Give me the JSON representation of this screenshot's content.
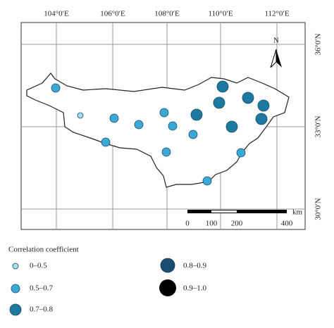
{
  "map": {
    "longitude_labels": [
      "104°0′E",
      "106°0′E",
      "108°0′E",
      "110°0′E",
      "112°0′E"
    ],
    "latitude_labels": [
      "36°0′N",
      "33°0′N",
      "30°0′N"
    ],
    "north_label": "N",
    "scale_bar": {
      "unit": "km",
      "labels": [
        "0",
        "100",
        "200",
        "400"
      ]
    }
  },
  "legend": {
    "title": "Correlation coefficient",
    "items": [
      "0–0.5",
      "0.5–0.7",
      "0.7–0.8",
      "0.8–0.9",
      "0.9–1.0"
    ]
  }
}
